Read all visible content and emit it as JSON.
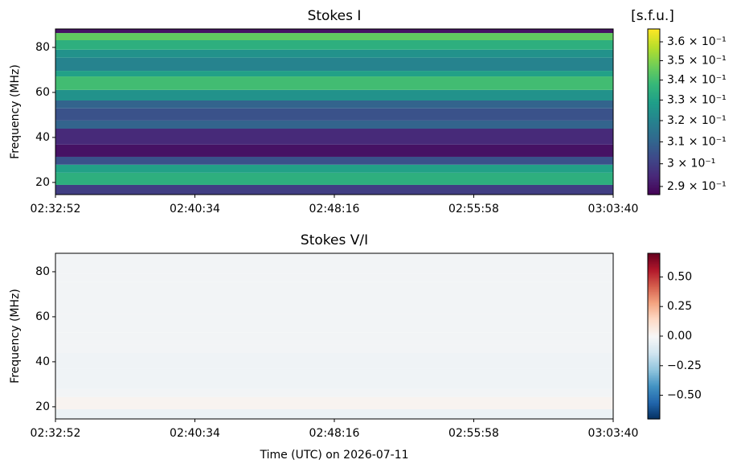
{
  "chart_data": [
    {
      "type": "heatmap",
      "title": "Stokes I",
      "ylabel": "Frequency (MHz)",
      "colorbar_label": "[s.f.u.]",
      "colormap": "viridis",
      "color_scale": "log",
      "xlim": [
        "02:32:52",
        "03:03:40"
      ],
      "xticks": [
        "02:32:52",
        "02:40:34",
        "02:48:16",
        "02:55:58",
        "03:03:40"
      ],
      "ylim": [
        14.6,
        88.2
      ],
      "yticks": [
        20,
        40,
        60,
        80
      ],
      "y_edges": [
        14.6,
        18.9,
        24.3,
        27.9,
        31.4,
        36.8,
        43.9,
        47.5,
        52.9,
        56.4,
        61.1,
        67.1,
        69.6,
        75.4,
        79,
        83.2,
        86.4,
        88.2
      ],
      "values": [
        0.3,
        0.335,
        0.33,
        0.305,
        0.29,
        0.295,
        0.31,
        0.305,
        0.31,
        0.325,
        0.34,
        0.33,
        0.32,
        0.325,
        0.335,
        0.345,
        0.29
      ],
      "clim": [
        0.2865,
        0.367
      ],
      "cticks": [
        {
          "value": 0.29,
          "label": "2.9 × 10⁻¹"
        },
        {
          "value": 0.3,
          "label": "3 × 10⁻¹"
        },
        {
          "value": 0.31,
          "label": "3.1 × 10⁻¹"
        },
        {
          "value": 0.32,
          "label": "3.2 × 10⁻¹"
        },
        {
          "value": 0.33,
          "label": "3.3 × 10⁻¹"
        },
        {
          "value": 0.34,
          "label": "3.4 × 10⁻¹"
        },
        {
          "value": 0.35,
          "label": "3.5 × 10⁻¹"
        },
        {
          "value": 0.36,
          "label": "3.6 × 10⁻¹"
        }
      ]
    },
    {
      "type": "heatmap",
      "title": "Stokes V/I",
      "ylabel": "Frequency (MHz)",
      "xlabel": "Time (UTC) on 2026-07-11",
      "colormap": "RdBu_r",
      "color_scale": "linear",
      "xlim": [
        "02:32:52",
        "03:03:40"
      ],
      "xticks": [
        "02:32:52",
        "02:40:34",
        "02:48:16",
        "02:55:58",
        "03:03:40"
      ],
      "ylim": [
        14.6,
        88.2
      ],
      "yticks": [
        20,
        40,
        60,
        80
      ],
      "y_edges": [
        14.6,
        18.9,
        24.3,
        27.9,
        31.4,
        36.8,
        43.9,
        47.5,
        52.9,
        56.4,
        61.1,
        67.1,
        69.6,
        75.4,
        79,
        83.2,
        86.4,
        88.2
      ],
      "values": [
        -0.04,
        0.02,
        -0.02,
        -0.03,
        -0.03,
        -0.03,
        -0.02,
        -0.02,
        -0.02,
        -0.02,
        -0.02,
        -0.02,
        -0.02,
        -0.02,
        -0.02,
        -0.02,
        -0.02
      ],
      "clim": [
        -0.7,
        0.7
      ],
      "cticks": [
        {
          "value": -0.5,
          "label": "−0.50"
        },
        {
          "value": -0.25,
          "label": "−0.25"
        },
        {
          "value": 0,
          "label": "0.00"
        },
        {
          "value": 0.25,
          "label": "0.25"
        },
        {
          "value": 0.5,
          "label": "0.50"
        }
      ]
    }
  ]
}
